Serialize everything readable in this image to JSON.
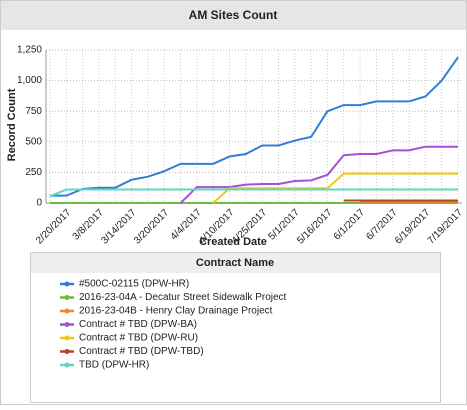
{
  "chart_data": {
    "type": "line",
    "title": "AM Sites Count",
    "x_label": "Created Date",
    "y_label": "Record Count",
    "legend_title": "Contract Name",
    "categories": [
      null,
      "2/20/2017",
      null,
      "3/8/2017",
      null,
      "3/14/2017",
      null,
      "3/20/2017",
      null,
      "4/4/2017",
      null,
      "4/10/2017",
      null,
      "4/25/2017",
      null,
      "5/1/2017",
      null,
      "5/16/2017",
      null,
      "6/1/2017",
      null,
      "6/7/2017",
      null,
      "6/19/2017",
      null,
      "7/19/2017"
    ],
    "series": [
      {
        "name": "#500C-02115 (DPW-HR)",
        "color": "#2f7fd6",
        "values": [
          60,
          60,
          115,
          125,
          125,
          190,
          215,
          260,
          320,
          320,
          320,
          380,
          400,
          470,
          470,
          510,
          540,
          750,
          800,
          800,
          830,
          830,
          830,
          870,
          1000,
          1190
        ]
      },
      {
        "name": "2016-23-04A - Decatur Street Sidewalk Project",
        "color": "#6dbb3c",
        "values": [
          0,
          0,
          0,
          0,
          0,
          0,
          0,
          0,
          0,
          0,
          0,
          0,
          0,
          0,
          0,
          0,
          0,
          0,
          0,
          0,
          0,
          0,
          0,
          0,
          0,
          0
        ]
      },
      {
        "name": "2016-23-04B - Henry Clay Drainage Project",
        "color": "#f0882a",
        "values": [
          null,
          null,
          null,
          null,
          null,
          null,
          null,
          null,
          null,
          null,
          null,
          null,
          null,
          null,
          null,
          null,
          null,
          null,
          null,
          10,
          10,
          10,
          10,
          10,
          10,
          10
        ]
      },
      {
        "name": "Contract # TBD (DPW-BA)",
        "color": "#a64fd8",
        "values": [
          null,
          null,
          null,
          null,
          null,
          null,
          null,
          null,
          0,
          130,
          130,
          130,
          150,
          155,
          155,
          180,
          185,
          230,
          390,
          400,
          400,
          430,
          430,
          460,
          460,
          460
        ]
      },
      {
        "name": "Contract # TBD (DPW-RU)",
        "color": "#f2c80f",
        "values": [
          null,
          null,
          null,
          null,
          null,
          null,
          null,
          null,
          null,
          null,
          0,
          120,
          120,
          120,
          120,
          120,
          120,
          120,
          240,
          240,
          240,
          240,
          240,
          240,
          240,
          240
        ]
      },
      {
        "name": "Contract # TBD (DPW-TBD)",
        "color": "#b5442a",
        "values": [
          null,
          null,
          null,
          null,
          null,
          null,
          null,
          null,
          null,
          null,
          null,
          null,
          null,
          null,
          null,
          null,
          null,
          null,
          20,
          20,
          20,
          20,
          20,
          20,
          20,
          20
        ]
      },
      {
        "name": "TBD (DPW-HR)",
        "color": "#5fd8c0",
        "values": [
          55,
          110,
          110,
          110,
          110,
          110,
          110,
          110,
          110,
          110,
          110,
          110,
          110,
          110,
          110,
          110,
          110,
          110,
          110,
          110,
          110,
          110,
          110,
          110,
          110,
          110
        ]
      }
    ],
    "ylim": [
      0,
      1250
    ],
    "yticks": [
      0,
      250,
      500,
      750,
      {
        "value": 1000,
        "label": "1,000"
      },
      {
        "value": 1250,
        "label": "1,250"
      }
    ],
    "grid": true
  }
}
